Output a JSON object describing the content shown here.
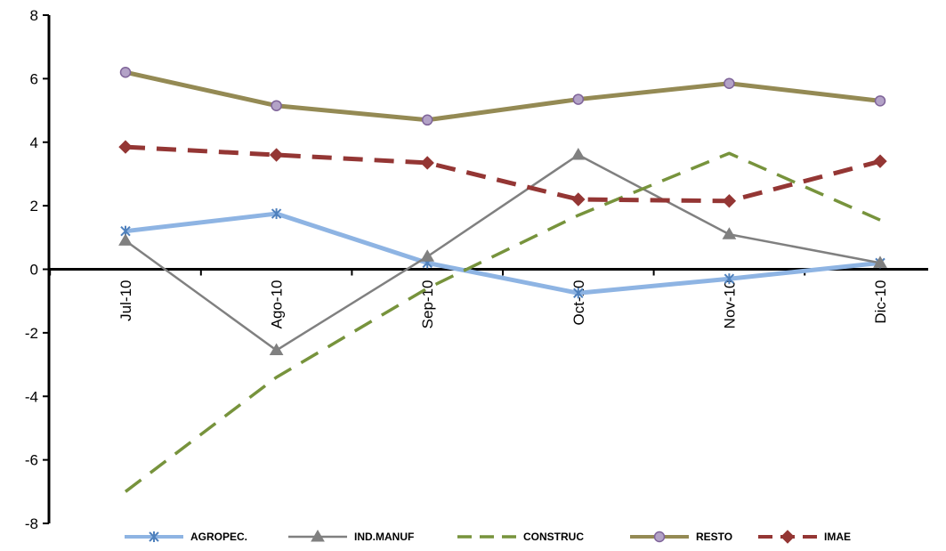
{
  "chart_data": {
    "type": "line",
    "title": "",
    "xlabel": "",
    "ylabel": "",
    "categories": [
      "Jul-10",
      "Ago-10",
      "Sep-10",
      "Oct-10",
      "Nov-10",
      "Dic-10"
    ],
    "ylim": [
      -8,
      8
    ],
    "yticks": [
      -8,
      -6,
      -4,
      -2,
      0,
      2,
      4,
      6,
      8
    ],
    "ytick_labels": [
      "-8",
      "-6",
      "-4",
      "-2",
      "0",
      "2",
      "4",
      "6",
      "8"
    ],
    "grid": false,
    "legend_position": "bottom",
    "series": [
      {
        "name": "AGROPEC.",
        "values": [
          1.2,
          1.75,
          0.2,
          -0.75,
          -0.3,
          0.2
        ],
        "color": "#8eb4e3",
        "dash": "solid",
        "marker": "asterisk",
        "width": 5
      },
      {
        "name": "IND.MANUF",
        "values": [
          0.9,
          -2.55,
          0.4,
          3.6,
          1.1,
          0.2
        ],
        "color": "#808080",
        "dash": "solid",
        "marker": "triangle",
        "width": 2.5
      },
      {
        "name": "CONSTRUC",
        "values": [
          -7.0,
          -3.4,
          -0.6,
          1.7,
          3.65,
          1.55
        ],
        "color": "#77933c",
        "dash": "dashed",
        "marker": "none",
        "width": 3.5
      },
      {
        "name": "RESTO",
        "values": [
          6.2,
          5.15,
          4.7,
          5.35,
          5.85,
          5.3
        ],
        "color": "#948a54",
        "dash": "solid",
        "marker": "circle",
        "width": 5
      },
      {
        "name": "IMAE",
        "values": [
          3.85,
          3.6,
          3.35,
          2.2,
          2.15,
          3.4
        ],
        "color": "#943634",
        "dash": "dashed",
        "marker": "diamond",
        "width": 5
      }
    ]
  }
}
